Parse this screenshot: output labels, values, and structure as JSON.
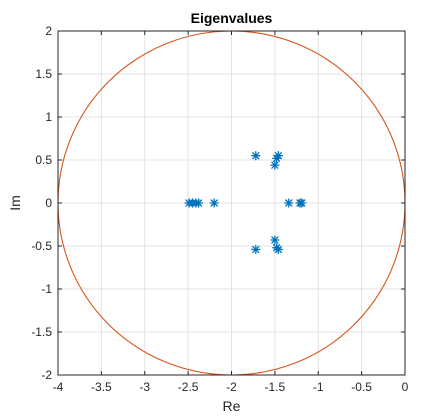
{
  "chart_data": {
    "type": "scatter",
    "title": "Eigenvalues",
    "xlabel": "Re",
    "ylabel": "Im",
    "xlim": [
      -4,
      0
    ],
    "ylim": [
      -2,
      2
    ],
    "grid": true,
    "xticks": [
      -4,
      -3.5,
      -3,
      -2.5,
      -2,
      -1.5,
      -1,
      -0.5,
      0
    ],
    "yticks": [
      -2,
      -1.5,
      -1,
      -0.5,
      0,
      0.5,
      1,
      1.5,
      2
    ],
    "xtick_labels": [
      "-4",
      "-3.5",
      "-3",
      "-2.5",
      "-2",
      "-1.5",
      "-1",
      "-0.5",
      "0"
    ],
    "ytick_labels": [
      "-2",
      "-1.5",
      "-1",
      "-0.5",
      "0",
      "0.5",
      "1",
      "1.5",
      "2"
    ],
    "series": [
      {
        "name": "eigenvalues",
        "marker": "asterisk",
        "color": "#0072BD",
        "points": [
          {
            "x": -2.49,
            "y": 0
          },
          {
            "x": -2.45,
            "y": 0
          },
          {
            "x": -2.41,
            "y": 0
          },
          {
            "x": -2.38,
            "y": 0
          },
          {
            "x": -2.2,
            "y": 0
          },
          {
            "x": -1.34,
            "y": 0
          },
          {
            "x": -1.21,
            "y": 0
          },
          {
            "x": -1.19,
            "y": 0
          },
          {
            "x": -1.72,
            "y": 0.55
          },
          {
            "x": -1.72,
            "y": -0.54
          },
          {
            "x": -1.5,
            "y": 0.44
          },
          {
            "x": -1.5,
            "y": -0.43
          },
          {
            "x": -1.48,
            "y": 0.52
          },
          {
            "x": -1.48,
            "y": -0.52
          },
          {
            "x": -1.46,
            "y": 0.55
          },
          {
            "x": -1.46,
            "y": -0.54
          }
        ]
      },
      {
        "name": "circle",
        "type": "circle",
        "color": "#D95319",
        "center": [
          -2,
          0
        ],
        "radius": 2
      }
    ]
  }
}
